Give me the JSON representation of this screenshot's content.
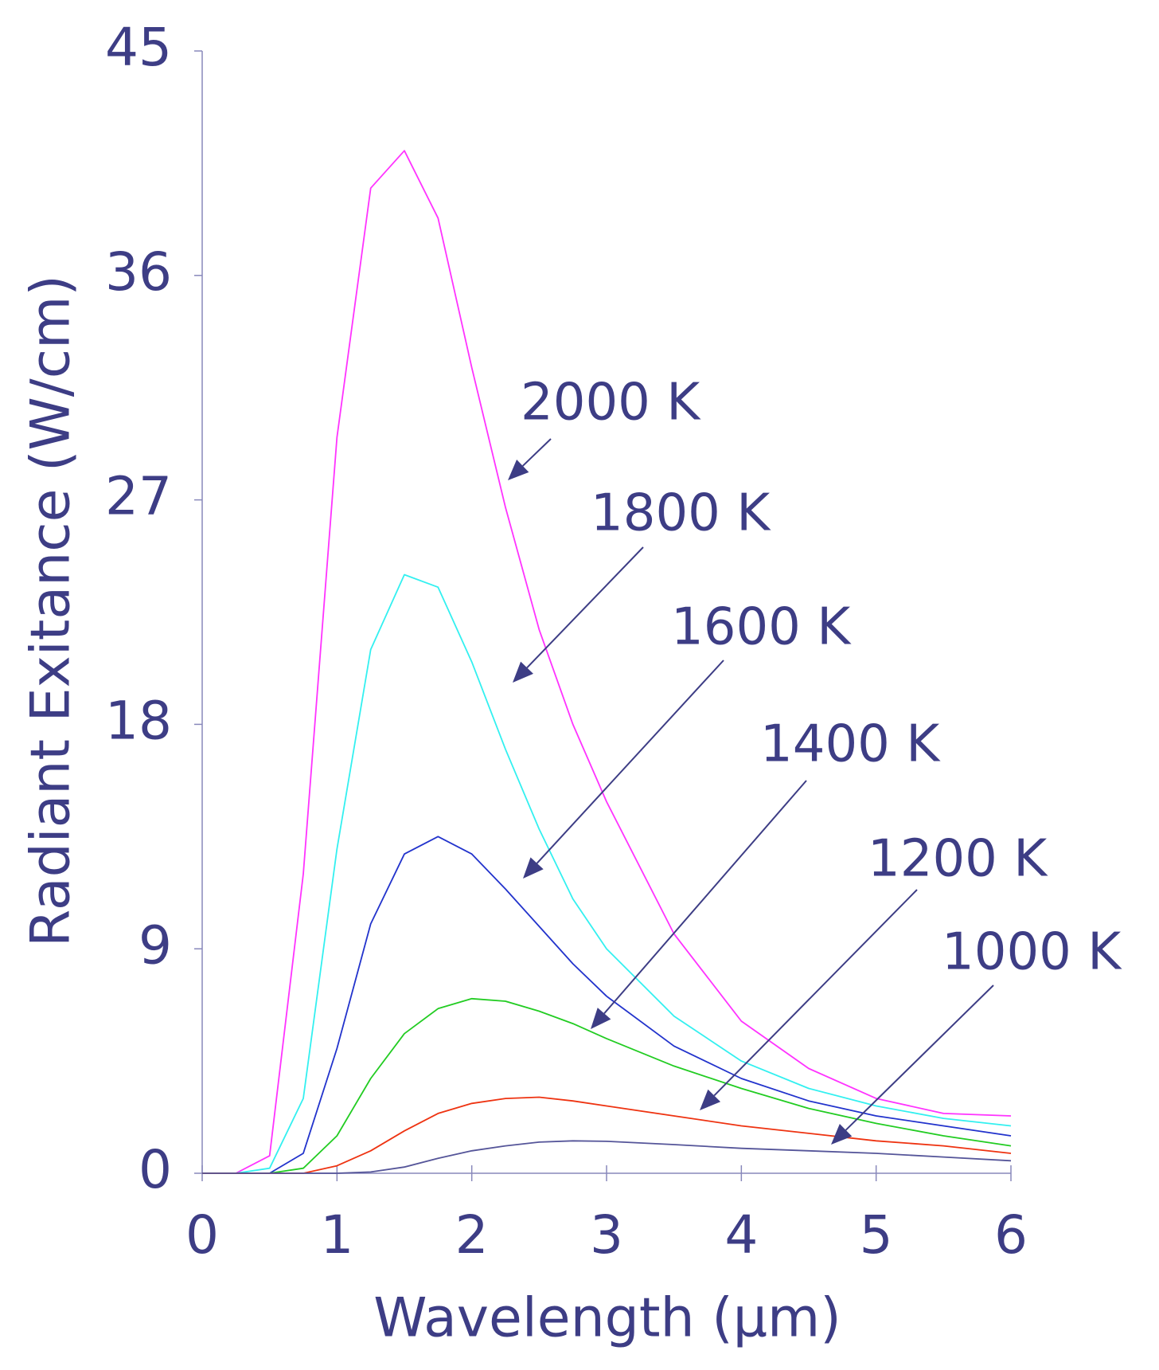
{
  "chart_data": {
    "type": "line",
    "xlabel": "Wavelength (μm)",
    "ylabel": "Radiant Exitance (W/cm)",
    "x": [
      0,
      0.25,
      0.5,
      0.75,
      1,
      1.25,
      1.5,
      1.75,
      2,
      2.25,
      2.5,
      2.75,
      3,
      3.5,
      4,
      4.5,
      5,
      5.5,
      6
    ],
    "series": [
      {
        "name": "2000 K",
        "color": "#ff33ff",
        "values": [
          0,
          0,
          0.7,
          12,
          29.5,
          39.5,
          41,
          38.3,
          32.3,
          26.7,
          21.8,
          18,
          14.9,
          9.6,
          6.1,
          4.2,
          3.0,
          2.4,
          2.3
        ]
      },
      {
        "name": "1800 K",
        "color": "#33f0f0",
        "values": [
          0,
          0,
          0.2,
          3,
          13,
          21,
          24,
          23.5,
          20.5,
          17,
          13.8,
          11,
          9,
          6.3,
          4.5,
          3.4,
          2.7,
          2.2,
          1.9
        ]
      },
      {
        "name": "1600 K",
        "color": "#2233cc",
        "values": [
          0,
          0,
          0,
          0.8,
          5,
          10,
          12.8,
          13.5,
          12.8,
          11.4,
          9.9,
          8.4,
          7.1,
          5.1,
          3.8,
          2.9,
          2.3,
          1.9,
          1.5
        ]
      },
      {
        "name": "1400 K",
        "color": "#22cc22",
        "values": [
          0,
          0,
          0,
          0.2,
          1.5,
          3.8,
          5.6,
          6.6,
          7.0,
          6.9,
          6.5,
          6.0,
          5.4,
          4.3,
          3.4,
          2.6,
          2.0,
          1.5,
          1.1
        ]
      },
      {
        "name": "1200 K",
        "color": "#ee3311",
        "values": [
          0,
          0,
          0,
          0,
          0.3,
          0.9,
          1.7,
          2.4,
          2.8,
          3.0,
          3.05,
          2.9,
          2.7,
          2.3,
          1.9,
          1.6,
          1.3,
          1.1,
          0.8
        ]
      },
      {
        "name": "1000 K",
        "color": "#555599",
        "values": [
          0,
          0,
          0,
          0,
          0,
          0.05,
          0.25,
          0.6,
          0.9,
          1.1,
          1.25,
          1.3,
          1.28,
          1.15,
          1.0,
          0.9,
          0.8,
          0.65,
          0.5
        ]
      }
    ],
    "xlim": [
      0,
      6
    ],
    "xticks": [
      0,
      1,
      2,
      3,
      4,
      5,
      6
    ],
    "ylim": [
      0,
      45
    ],
    "yticks": [
      0,
      9,
      18,
      27,
      36,
      45
    ],
    "axis_color": "#8888bb"
  }
}
